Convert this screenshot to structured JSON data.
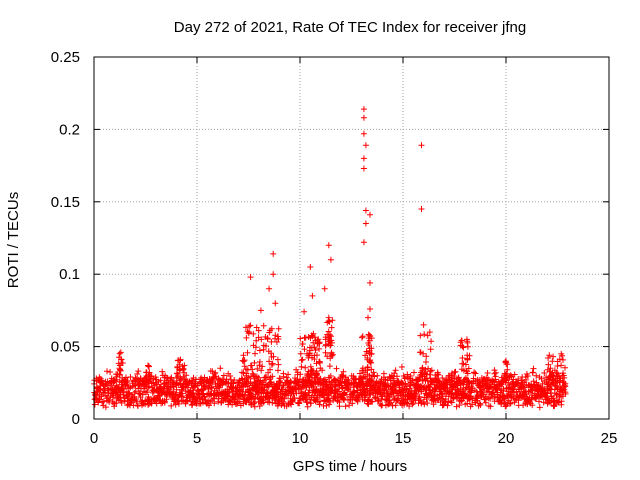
{
  "chart_data": {
    "type": "scatter",
    "title": "Day 272 of 2021, Rate Of TEC Index for receiver jfng",
    "xlabel": "GPS time / hours",
    "ylabel": "ROTI / TECUs",
    "xlim": [
      0,
      25
    ],
    "ylim": [
      0,
      0.25
    ],
    "x_ticks": [
      0,
      5,
      10,
      15,
      20,
      25
    ],
    "y_ticks": [
      0,
      0.05,
      0.1,
      0.15,
      0.2,
      0.25
    ],
    "x_tick_labels": [
      "0",
      "5",
      "10",
      "15",
      "20",
      "25"
    ],
    "y_tick_labels": [
      "0",
      "0.05",
      "0.1",
      "0.15",
      "0.2",
      "0.25"
    ],
    "grid": true,
    "marker": "plus",
    "marker_color": "#ff0000",
    "baseline_range_approx": [
      0.005,
      0.035
    ],
    "notable_points": [
      {
        "x": 1.3,
        "y": 0.046
      },
      {
        "x": 4.2,
        "y": 0.041
      },
      {
        "x": 7.4,
        "y": 0.056
      },
      {
        "x": 7.6,
        "y": 0.098
      },
      {
        "x": 8.1,
        "y": 0.075
      },
      {
        "x": 8.5,
        "y": 0.09
      },
      {
        "x": 8.7,
        "y": 0.114
      },
      {
        "x": 8.7,
        "y": 0.1
      },
      {
        "x": 8.8,
        "y": 0.08
      },
      {
        "x": 10.2,
        "y": 0.074
      },
      {
        "x": 10.5,
        "y": 0.105
      },
      {
        "x": 10.6,
        "y": 0.085
      },
      {
        "x": 11.2,
        "y": 0.09
      },
      {
        "x": 11.4,
        "y": 0.12
      },
      {
        "x": 11.5,
        "y": 0.11
      },
      {
        "x": 11.4,
        "y": 0.07
      },
      {
        "x": 13.1,
        "y": 0.214
      },
      {
        "x": 13.1,
        "y": 0.208
      },
      {
        "x": 13.1,
        "y": 0.197
      },
      {
        "x": 13.2,
        "y": 0.189
      },
      {
        "x": 13.1,
        "y": 0.18
      },
      {
        "x": 13.1,
        "y": 0.173
      },
      {
        "x": 13.2,
        "y": 0.144
      },
      {
        "x": 13.4,
        "y": 0.141
      },
      {
        "x": 13.2,
        "y": 0.135
      },
      {
        "x": 13.1,
        "y": 0.122
      },
      {
        "x": 13.4,
        "y": 0.094
      },
      {
        "x": 13.4,
        "y": 0.076
      },
      {
        "x": 13.3,
        "y": 0.07
      },
      {
        "x": 15.9,
        "y": 0.189
      },
      {
        "x": 15.9,
        "y": 0.145
      },
      {
        "x": 16.0,
        "y": 0.065
      },
      {
        "x": 16.3,
        "y": 0.06
      },
      {
        "x": 17.8,
        "y": 0.053
      },
      {
        "x": 18.1,
        "y": 0.055
      },
      {
        "x": 20.0,
        "y": 0.04
      },
      {
        "x": 22.1,
        "y": 0.044
      }
    ],
    "note": "Dense scatter of ~0.005–0.035 TECU/min values across 0–22.9 h with spikes listed above."
  }
}
